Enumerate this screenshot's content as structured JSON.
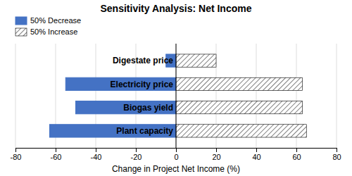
{
  "chart_data": {
    "type": "bar",
    "orientation": "horizontal",
    "title": "Sensitivity Analysis: Net Income",
    "xlabel": "Change in Project Net Income (%)",
    "categories": [
      "Plant capacity",
      "Biogas yield",
      "Electricity price",
      "Digestate price"
    ],
    "series": [
      {
        "name": "50% Decrease",
        "color": "#4472C4",
        "values": [
          -63,
          -50,
          -55,
          -5
        ]
      },
      {
        "name": "50% Increase",
        "color": "white",
        "values": [
          65,
          63,
          63,
          20
        ]
      }
    ],
    "xlim": [
      -80,
      80
    ],
    "xticks": [
      -80,
      -60,
      -40,
      -20,
      0,
      20,
      40,
      60,
      80
    ],
    "grid": true,
    "legend": "upper left"
  }
}
